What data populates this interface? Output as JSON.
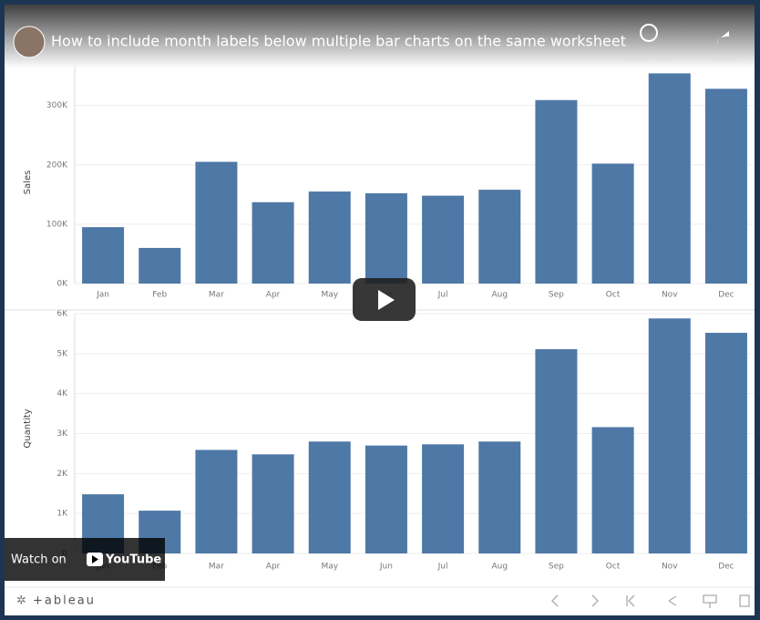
{
  "video": {
    "title": "How to include month labels below multiple bar charts on the same worksheet",
    "watch_later": "Watch later",
    "share": "Share",
    "watch_on": "Watch on",
    "youtube": "YouTube"
  },
  "footer": {
    "brand": "+ableau"
  },
  "chart_data": [
    {
      "type": "bar",
      "y_label": "Sales",
      "color": "#4e78a6",
      "grid": true,
      "categories": [
        "Jan",
        "Feb",
        "Mar",
        "Apr",
        "May",
        "Jun",
        "Jul",
        "Aug",
        "Sep",
        "Oct",
        "Nov",
        "Dec"
      ],
      "values": [
        95000,
        60000,
        205000,
        137000,
        155000,
        152000,
        148000,
        158000,
        309000,
        202000,
        354000,
        328000
      ],
      "ylim": [
        0,
        367000
      ],
      "yticks": [
        {
          "value": 0,
          "label": "0K"
        },
        {
          "value": 100000,
          "label": "100K"
        },
        {
          "value": 200000,
          "label": "200K"
        },
        {
          "value": 300000,
          "label": "300K"
        }
      ]
    },
    {
      "type": "bar",
      "y_label": "Quantity",
      "color": "#4e78a6",
      "grid": true,
      "categories": [
        "Jan",
        "Feb",
        "Mar",
        "Apr",
        "May",
        "Jun",
        "Jul",
        "Aug",
        "Sep",
        "Oct",
        "Nov",
        "Dec"
      ],
      "values": [
        1480,
        1070,
        2590,
        2480,
        2800,
        2700,
        2730,
        2800,
        5110,
        3160,
        5880,
        5520
      ],
      "ylim": [
        0,
        6000
      ],
      "yticks": [
        0,
        {
          "value": 1000,
          "label": "1K"
        },
        {
          "value": 2000,
          "label": "2K"
        },
        {
          "value": 3000,
          "label": "3K"
        },
        {
          "value": 4000,
          "label": "4K"
        },
        {
          "value": 5000,
          "label": "5K"
        },
        {
          "value": 6000,
          "label": "6K"
        }
      ]
    }
  ]
}
